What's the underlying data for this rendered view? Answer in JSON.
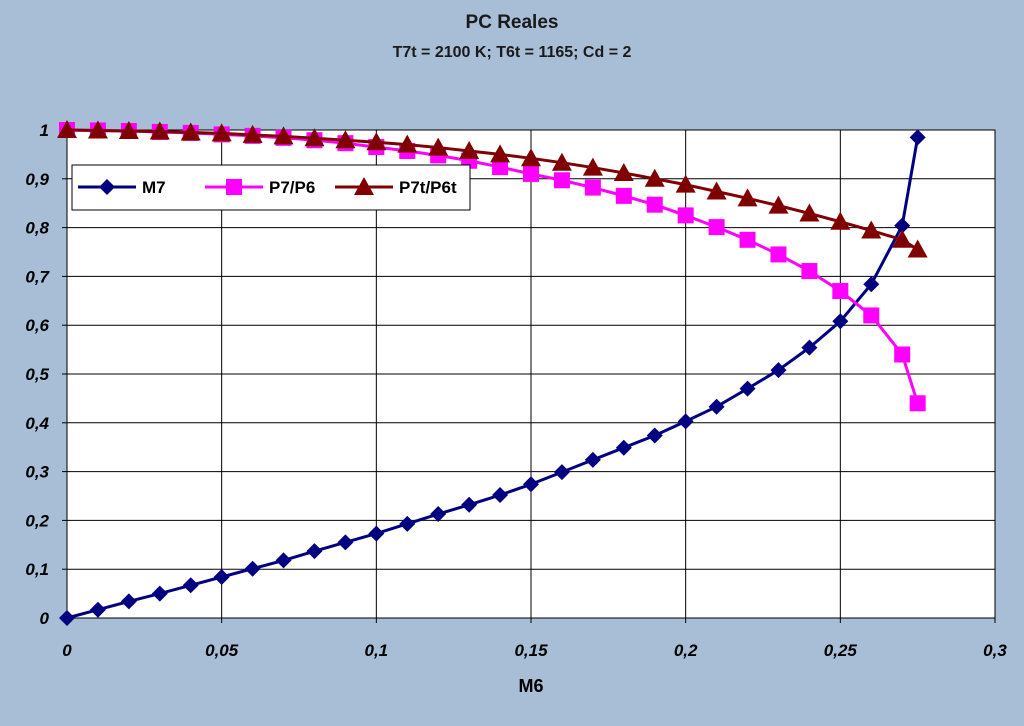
{
  "chart_data": {
    "type": "line",
    "title": "PC Reales",
    "subtitle": "T7t = 2100 K;   T6t = 1165;   Cd = 2",
    "xlabel": "M6",
    "ylabel": "",
    "xlim": [
      0,
      0.3
    ],
    "ylim": [
      0,
      1
    ],
    "x_ticks": [
      "0",
      "0,05",
      "0,1",
      "0,15",
      "0,2",
      "0,25",
      "0,3"
    ],
    "x_tick_values": [
      0,
      0.05,
      0.1,
      0.15,
      0.2,
      0.25,
      0.3
    ],
    "y_ticks": [
      "0",
      "0,1",
      "0,2",
      "0,3",
      "0,4",
      "0,5",
      "0,6",
      "0,7",
      "0,8",
      "0,9",
      "1"
    ],
    "y_tick_values": [
      0,
      0.1,
      0.2,
      0.3,
      0.4,
      0.5,
      0.6,
      0.7,
      0.8,
      0.9,
      1
    ],
    "grid": true,
    "legend_position": "top-left",
    "series": [
      {
        "name": "M7",
        "color": "#000080",
        "marker": "diamond",
        "x": [
          0,
          0.01,
          0.02,
          0.03,
          0.04,
          0.05,
          0.06,
          0.07,
          0.08,
          0.09,
          0.1,
          0.11,
          0.12,
          0.13,
          0.14,
          0.15,
          0.16,
          0.17,
          0.18,
          0.19,
          0.2,
          0.21,
          0.22,
          0.23,
          0.24,
          0.25,
          0.26,
          0.27,
          0.275
        ],
        "values": [
          0,
          0.017,
          0.034,
          0.05,
          0.067,
          0.084,
          0.101,
          0.118,
          0.137,
          0.155,
          0.173,
          0.193,
          0.213,
          0.232,
          0.252,
          0.274,
          0.299,
          0.324,
          0.349,
          0.374,
          0.403,
          0.433,
          0.47,
          0.508,
          0.554,
          0.608,
          0.684,
          0.804,
          0.985
        ]
      },
      {
        "name": "P7/P6",
        "color": "#ff00ff",
        "marker": "square",
        "x": [
          0,
          0.01,
          0.02,
          0.03,
          0.04,
          0.05,
          0.06,
          0.07,
          0.08,
          0.09,
          0.1,
          0.11,
          0.12,
          0.13,
          0.14,
          0.15,
          0.16,
          0.17,
          0.18,
          0.19,
          0.2,
          0.21,
          0.22,
          0.23,
          0.24,
          0.25,
          0.26,
          0.27,
          0.275
        ],
        "values": [
          1,
          0.999,
          0.998,
          0.996,
          0.994,
          0.991,
          0.988,
          0.984,
          0.979,
          0.973,
          0.965,
          0.957,
          0.948,
          0.937,
          0.924,
          0.91,
          0.897,
          0.882,
          0.865,
          0.847,
          0.825,
          0.801,
          0.775,
          0.745,
          0.711,
          0.67,
          0.62,
          0.54,
          0.44
        ]
      },
      {
        "name": "P7t/P6t",
        "color": "#800000",
        "marker": "triangle",
        "x": [
          0,
          0.01,
          0.02,
          0.03,
          0.04,
          0.05,
          0.06,
          0.07,
          0.08,
          0.09,
          0.1,
          0.11,
          0.12,
          0.13,
          0.14,
          0.15,
          0.16,
          0.17,
          0.18,
          0.19,
          0.2,
          0.21,
          0.22,
          0.23,
          0.24,
          0.25,
          0.26,
          0.27,
          0.275
        ],
        "values": [
          1,
          0.999,
          0.998,
          0.997,
          0.995,
          0.993,
          0.99,
          0.987,
          0.983,
          0.979,
          0.975,
          0.97,
          0.964,
          0.957,
          0.95,
          0.942,
          0.933,
          0.923,
          0.912,
          0.9,
          0.888,
          0.874,
          0.86,
          0.845,
          0.829,
          0.812,
          0.794,
          0.775,
          0.755
        ]
      }
    ]
  }
}
